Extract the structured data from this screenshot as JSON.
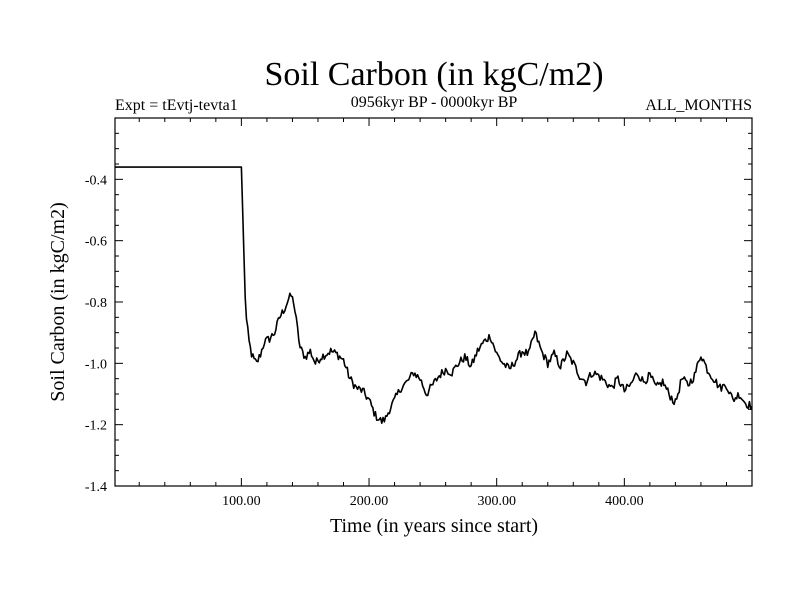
{
  "chart_data": {
    "type": "line",
    "title": "Soil Carbon (in kgC/m2)",
    "subtitle_left": "Expt = tEvtj-tevta1",
    "subtitle_center": "0956kyr BP - 0000kyr BP",
    "subtitle_right": "ALL_MONTHS",
    "xlabel": "Time (in years since start)",
    "ylabel": "Soil Carbon (in kgC/m2)",
    "xlim": [
      1,
      500
    ],
    "ylim": [
      -1.4,
      -0.2
    ],
    "x_ticks": [
      {
        "value": 100,
        "label": "100.00"
      },
      {
        "value": 200,
        "label": "200.00"
      },
      {
        "value": 300,
        "label": "300.00"
      },
      {
        "value": 400,
        "label": "400.00"
      }
    ],
    "y_ticks": [
      {
        "value": -0.4,
        "label": "-0.4"
      },
      {
        "value": -0.6,
        "label": "-0.6"
      },
      {
        "value": -0.8,
        "label": "-0.8"
      },
      {
        "value": -1.0,
        "label": "-1.0"
      },
      {
        "value": -1.2,
        "label": "-1.2"
      },
      {
        "value": -1.4,
        "label": "-1.4"
      }
    ],
    "series": [
      {
        "name": "Soil Carbon",
        "color": "#000000",
        "x": [
          1,
          100,
          101,
          102,
          103,
          104,
          106,
          108,
          110,
          112,
          115,
          118,
          122,
          126,
          130,
          134,
          137,
          139,
          141,
          143,
          146,
          150,
          154,
          158,
          162,
          166,
          170,
          175,
          180,
          185,
          190,
          195,
          200,
          205,
          210,
          213,
          216,
          220,
          225,
          230,
          235,
          240,
          245,
          250,
          255,
          260,
          265,
          270,
          275,
          280,
          285,
          290,
          295,
          300,
          305,
          310,
          315,
          320,
          325,
          330,
          335,
          340,
          345,
          350,
          355,
          360,
          365,
          370,
          375,
          380,
          385,
          390,
          395,
          400,
          405,
          410,
          415,
          420,
          425,
          430,
          435,
          440,
          445,
          450,
          455,
          460,
          465,
          470,
          475,
          480,
          485,
          490,
          495,
          500
        ],
        "values": [
          -0.36,
          -0.36,
          -0.5,
          -0.65,
          -0.78,
          -0.86,
          -0.93,
          -0.97,
          -0.99,
          -1.0,
          -0.97,
          -0.93,
          -0.92,
          -0.9,
          -0.85,
          -0.82,
          -0.79,
          -0.78,
          -0.8,
          -0.86,
          -0.95,
          -0.98,
          -0.96,
          -1.0,
          -0.98,
          -0.97,
          -0.96,
          -0.97,
          -0.99,
          -1.05,
          -1.08,
          -1.09,
          -1.12,
          -1.17,
          -1.19,
          -1.18,
          -1.15,
          -1.12,
          -1.08,
          -1.06,
          -1.03,
          -1.05,
          -1.1,
          -1.07,
          -1.04,
          -1.02,
          -1.03,
          -1.0,
          -0.98,
          -1.01,
          -0.96,
          -0.93,
          -0.91,
          -0.97,
          -1.0,
          -1.02,
          -0.99,
          -0.96,
          -0.97,
          -0.9,
          -0.96,
          -1.0,
          -0.97,
          -1.01,
          -0.97,
          -1.0,
          -1.04,
          -1.06,
          -1.03,
          -1.04,
          -1.06,
          -1.08,
          -1.05,
          -1.09,
          -1.07,
          -1.03,
          -1.06,
          -1.04,
          -1.08,
          -1.06,
          -1.1,
          -1.13,
          -1.05,
          -1.07,
          -1.04,
          -0.97,
          -1.02,
          -1.05,
          -1.08,
          -1.07,
          -1.12,
          -1.1,
          -1.13,
          -1.14
        ]
      }
    ]
  }
}
